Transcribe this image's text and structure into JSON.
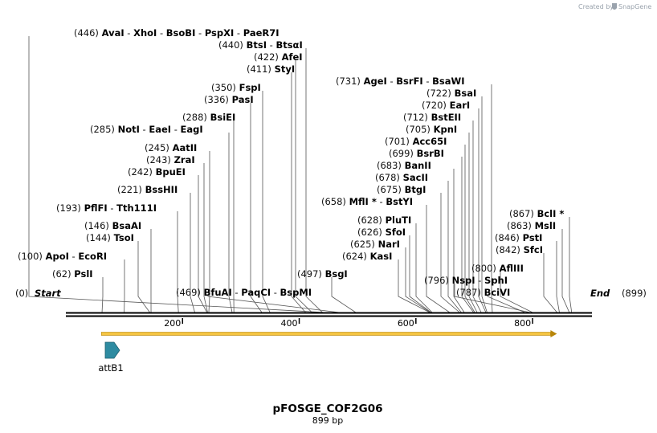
{
  "credit": {
    "prefix": "Created by",
    "brand": "SnapGene"
  },
  "plasmid": {
    "name": "pFOSGE_COF2G06",
    "length_label": "899 bp",
    "length": 899
  },
  "ends": {
    "start_pos": "(0)",
    "start_label": "Start",
    "end_label": "End",
    "end_pos": "(899)"
  },
  "axis": {
    "ticks": [
      200,
      400,
      600,
      800
    ]
  },
  "features": [
    {
      "name": "attB1",
      "start": 65,
      "end": 90
    }
  ],
  "orf": {
    "start": 65,
    "end": 839
  },
  "labels": [
    {
      "pos": 446,
      "names": [
        "AvaI",
        "XhoI",
        "BsoBI",
        "PspXI",
        "PaeR7I"
      ]
    },
    {
      "pos": 440,
      "names": [
        "BtsI",
        "BtsαI"
      ]
    },
    {
      "pos": 422,
      "names": [
        "AfeI"
      ]
    },
    {
      "pos": 411,
      "names": [
        "StyI"
      ]
    },
    {
      "pos": 350,
      "names": [
        "FspI"
      ]
    },
    {
      "pos": 336,
      "names": [
        "PasI"
      ]
    },
    {
      "pos": 288,
      "names": [
        "BsiEI"
      ]
    },
    {
      "pos": 285,
      "names": [
        "NotI",
        "EaeI",
        "EagI"
      ]
    },
    {
      "pos": 245,
      "names": [
        "AatII"
      ]
    },
    {
      "pos": 243,
      "names": [
        "ZraI"
      ]
    },
    {
      "pos": 242,
      "names": [
        "BpuEI"
      ]
    },
    {
      "pos": 221,
      "names": [
        "BssHII"
      ]
    },
    {
      "pos": 193,
      "names": [
        "PflFI",
        "Tth111I"
      ]
    },
    {
      "pos": 146,
      "names": [
        "BsaAI"
      ]
    },
    {
      "pos": 144,
      "names": [
        "TsoI"
      ]
    },
    {
      "pos": 100,
      "names": [
        "ApoI",
        "EcoRI"
      ]
    },
    {
      "pos": 62,
      "names": [
        "PslI"
      ]
    },
    {
      "pos": 469,
      "names": [
        "BfuAI",
        "PaqCI",
        "BspMI"
      ]
    },
    {
      "pos": 497,
      "names": [
        "BsgI"
      ]
    },
    {
      "pos": 731,
      "names": [
        "AgeI",
        "BsrFI",
        "BsaWI"
      ]
    },
    {
      "pos": 722,
      "names": [
        "BsaI"
      ]
    },
    {
      "pos": 720,
      "names": [
        "EarI"
      ]
    },
    {
      "pos": 712,
      "names": [
        "BstEII"
      ]
    },
    {
      "pos": 705,
      "names": [
        "KpnI"
      ]
    },
    {
      "pos": 701,
      "names": [
        "Acc65I"
      ]
    },
    {
      "pos": 699,
      "names": [
        "BsrBI"
      ]
    },
    {
      "pos": 683,
      "names": [
        "BanII"
      ]
    },
    {
      "pos": 678,
      "names": [
        "SacII"
      ]
    },
    {
      "pos": 675,
      "names": [
        "BtgI"
      ]
    },
    {
      "pos": 658,
      "names": [
        "MflI *",
        "BstYI"
      ]
    },
    {
      "pos": 628,
      "names": [
        "PluTI"
      ]
    },
    {
      "pos": 626,
      "names": [
        "SfoI"
      ]
    },
    {
      "pos": 625,
      "names": [
        "NarI"
      ]
    },
    {
      "pos": 624,
      "names": [
        "KasI"
      ]
    },
    {
      "pos": 796,
      "names": [
        "NspI",
        "SphI"
      ]
    },
    {
      "pos": 800,
      "names": [
        "AflIII"
      ]
    },
    {
      "pos": 787,
      "names": [
        "BciVI"
      ]
    },
    {
      "pos": 867,
      "names": [
        "BclI *"
      ]
    },
    {
      "pos": 863,
      "names": [
        "MslI"
      ]
    },
    {
      "pos": 846,
      "names": [
        "PstI"
      ]
    },
    {
      "pos": 842,
      "names": [
        "SfcI"
      ]
    }
  ]
}
